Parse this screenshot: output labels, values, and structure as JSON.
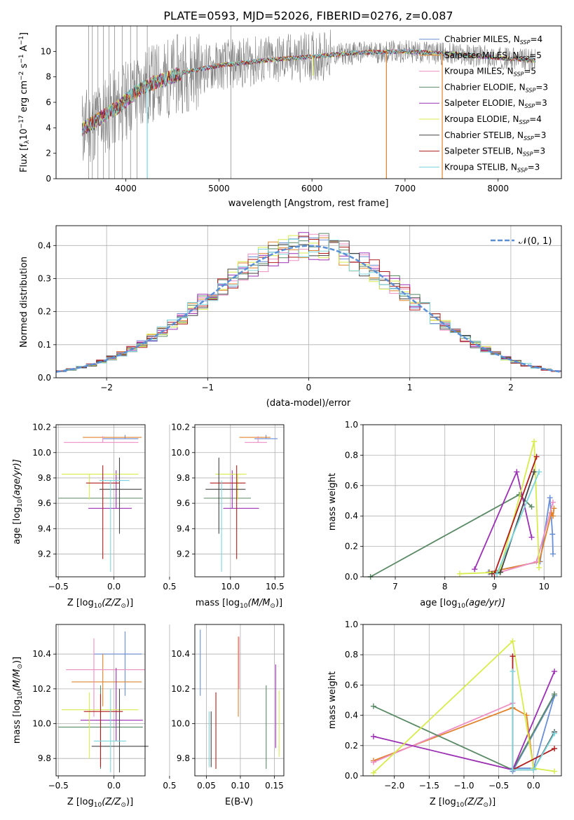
{
  "title": "PLATE=0593, MJD=52026, FIBERID=0276, z=0.087",
  "models": [
    {
      "name": "Chabrier MILES, N",
      "n": "=4",
      "color": "#6a8fd6"
    },
    {
      "name": "Salpeter MILES, N",
      "n": "=5",
      "color": "#e0832c"
    },
    {
      "name": "Kroupa MILES, N",
      "n": "=5",
      "color": "#ee8fc4"
    },
    {
      "name": "Chabrier ELODIE, N",
      "n": "=3",
      "color": "#5b8a66"
    },
    {
      "name": "Salpeter ELODIE, N",
      "n": "=3",
      "color": "#9b30b4"
    },
    {
      "name": "Kroupa ELODIE, N",
      "n": "=4",
      "color": "#d8ec4e"
    },
    {
      "name": "Chabrier STELIB, N",
      "n": "=3",
      "color": "#444444"
    },
    {
      "name": "Salpeter STELIB, N",
      "n": "=3",
      "color": "#b01c1c"
    },
    {
      "name": "Kroupa STELIB, N",
      "n": "=3",
      "color": "#7ad6dc"
    }
  ],
  "legend_sub": "SSP",
  "spectrum_panel": {
    "xlabel": "wavelength [Angstrom, rest frame]",
    "ylabel": "Flux [f",
    "xticks": [
      "4000",
      "5000",
      "6000",
      "7000",
      "8000"
    ],
    "yticks": [
      "0",
      "2",
      "4",
      "6",
      "8",
      "10"
    ],
    "data_color": "#808080"
  },
  "hist_panel": {
    "xlabel": "(data-model)/error",
    "ylabel": "Normed distribution",
    "xticks": [
      "−2",
      "−1",
      "0",
      "1",
      "2"
    ],
    "yticks": [
      "0.0",
      "0.1",
      "0.2",
      "0.3",
      "0.4"
    ],
    "legend": "𝒩(0, 1)",
    "gauss_color": "#5a8fd6"
  },
  "panel_labels": {
    "age": "age  [log",
    "age_close": "(age/yr)]",
    "Z": "Z [log",
    "Z_close": "(Z/Z",
    "mass": "mass [log",
    "mass_close": "(M/M",
    "mass_weight": "mass weight",
    "ebv": "E(B-V)",
    "sun": "⊙",
    "close": ")]",
    "ten": "10"
  },
  "ticks": {
    "age": [
      "9.2",
      "9.4",
      "9.6",
      "9.8",
      "10.0",
      "10.2"
    ],
    "Z_small": [
      "−0.5",
      "0.0",
      "0.5"
    ],
    "mass_x": [
      "10.0",
      "10.5"
    ],
    "mass_y": [
      "9.8",
      "10.0",
      "10.2",
      "10.4"
    ],
    "ebv": [
      "0.05",
      "0.10",
      "0.15"
    ],
    "mw": [
      "0.0",
      "0.2",
      "0.4",
      "0.6",
      "0.8",
      "1.0"
    ],
    "age_x": [
      "7",
      "8",
      "9",
      "10"
    ],
    "Z_x": [
      "−2.0",
      "−1.5",
      "−1.0",
      "−0.5",
      "0.0"
    ]
  },
  "chart_data": [
    {
      "type": "line",
      "title": "PLATE=0593, MJD=52026, FIBERID=0276, z=0.087",
      "xlabel": "wavelength [Angstrom, rest frame]",
      "ylabel": "Flux [f_λ 10^-17 erg cm^-2 s^-1 A^-1]",
      "xlim": [
        3250,
        8680
      ],
      "ylim": [
        0,
        12
      ],
      "continuum": [
        [
          3530,
          3.9
        ],
        [
          3650,
          4.4
        ],
        [
          3800,
          5.1
        ],
        [
          3950,
          5.8
        ],
        [
          4100,
          6.8
        ],
        [
          4300,
          7.5
        ],
        [
          4600,
          8.3
        ],
        [
          5000,
          8.9
        ],
        [
          5500,
          9.3
        ],
        [
          6000,
          9.6
        ],
        [
          6500,
          9.9
        ],
        [
          7000,
          10.0
        ],
        [
          7500,
          9.8
        ],
        [
          8000,
          9.5
        ],
        [
          8400,
          9.3
        ]
      ],
      "model_dips": [
        [
          4230,
          0
        ],
        [
          6010,
          8.1
        ],
        [
          6800,
          0
        ],
        [
          7400,
          0
        ]
      ]
    },
    {
      "type": "bar",
      "title": "",
      "xlabel": "(data-model)/error",
      "ylabel": "Normed distribution",
      "xlim": [
        -2.5,
        2.5
      ],
      "ylim": [
        0,
        0.46
      ],
      "legend": "N(0,1)",
      "bin_width": 0.1
    },
    {
      "type": "scatter",
      "xlabel": "Z [log10(Z/Zsun)]",
      "ylabel": "age [log10(age/yr)]",
      "xlim": [
        -0.52,
        0.28
      ],
      "ylim": [
        9.02,
        10.22
      ],
      "points": [
        {
          "x": 0.1,
          "xerr": [
            0.2,
            0.12
          ],
          "y": 10.11,
          "yerr": [
            0.0,
            0.03
          ]
        },
        {
          "x": -0.1,
          "xerr": [
            0.18,
            0.35
          ],
          "y": 10.12,
          "yerr": [
            0.0,
            0.0
          ]
        },
        {
          "x": -0.1,
          "xerr": [
            0.35,
            0.32
          ],
          "y": 10.08,
          "yerr": [
            0.0,
            0.05
          ]
        },
        {
          "x": -0.12,
          "xerr": [
            0.38,
            0.38
          ],
          "y": 9.64,
          "yerr": [
            0.0,
            0.0
          ]
        },
        {
          "x": 0.02,
          "xerr": [
            0.25,
            0.14
          ],
          "y": 9.56,
          "yerr": [
            0.0,
            0.3
          ]
        },
        {
          "x": -0.22,
          "xerr": [
            0.25,
            0.44
          ],
          "y": 9.83,
          "yerr": [
            0.2,
            0.0
          ]
        },
        {
          "x": 0.05,
          "xerr": [
            0.18,
            0.2
          ],
          "y": 9.71,
          "yerr": [
            0.35,
            0.25
          ]
        },
        {
          "x": -0.1,
          "xerr": [
            0.15,
            0.15
          ],
          "y": 9.76,
          "yerr": [
            0.6,
            0.14
          ]
        },
        {
          "x": -0.03,
          "xerr": [
            0.1,
            0.17
          ],
          "y": 9.78,
          "yerr": [
            0.72,
            0.0
          ]
        }
      ]
    },
    {
      "type": "scatter",
      "xlabel": "mass [log10(M/Msun)]",
      "ylabel": "",
      "xlim": [
        9.6,
        10.6
      ],
      "ylim": [
        9.02,
        10.22
      ],
      "points": [
        {
          "x": 10.4,
          "xerr": [
            0.13,
            0.13
          ],
          "y": 10.11,
          "yerr": [
            0.0,
            0.03
          ]
        },
        {
          "x": 10.25,
          "xerr": [
            0.15,
            0.2
          ],
          "y": 10.12,
          "yerr": [
            0.0,
            0.0
          ]
        },
        {
          "x": 10.31,
          "xerr": [
            0.15,
            0.1
          ],
          "y": 10.08,
          "yerr": [
            0.0,
            0.05
          ]
        },
        {
          "x": 9.98,
          "xerr": [
            0.28,
            0.25
          ],
          "y": 9.64,
          "yerr": [
            0.0,
            0.0
          ]
        },
        {
          "x": 10.02,
          "xerr": [
            0.1,
            0.3
          ],
          "y": 9.56,
          "yerr": [
            0.0,
            0.3
          ]
        },
        {
          "x": 10.08,
          "xerr": [
            0.25,
            0.1
          ],
          "y": 9.83,
          "yerr": [
            0.2,
            0.0
          ]
        },
        {
          "x": 9.87,
          "xerr": [
            0.15,
            0.3
          ],
          "y": 9.71,
          "yerr": [
            0.35,
            0.25
          ]
        },
        {
          "x": 10.07,
          "xerr": [
            0.3,
            0.1
          ],
          "y": 9.76,
          "yerr": [
            0.6,
            0.14
          ]
        },
        {
          "x": 9.9,
          "xerr": [
            0.0,
            0.0
          ],
          "y": 9.78,
          "yerr": [
            0.72,
            0.0
          ]
        }
      ]
    },
    {
      "type": "line",
      "xlabel": "age [log10(age/yr)]",
      "ylabel": "mass weight",
      "xlim": [
        6.35,
        10.35
      ],
      "ylim": [
        0,
        1
      ],
      "series": [
        {
          "points": [
            [
              8.88,
              0.03
            ],
            [
              9.92,
              0.1
            ],
            [
              10.12,
              0.52
            ],
            [
              10.17,
              0.28
            ],
            [
              10.18,
              0.15
            ]
          ]
        },
        {
          "points": [
            [
              8.9,
              0.03
            ],
            [
              9.9,
              0.1
            ],
            [
              10.15,
              0.42
            ],
            [
              10.18,
              0.4
            ],
            [
              10.2,
              0.45
            ]
          ]
        },
        {
          "points": [
            [
              9.0,
              0.02
            ],
            [
              9.85,
              0.1
            ],
            [
              10.18,
              0.49
            ]
          ]
        },
        {
          "points": [
            [
              6.5,
              0.0
            ],
            [
              9.5,
              0.54
            ],
            [
              9.75,
              0.46
            ]
          ]
        },
        {
          "points": [
            [
              8.6,
              0.05
            ],
            [
              9.45,
              0.69
            ],
            [
              9.75,
              0.26
            ]
          ]
        },
        {
          "points": [
            [
              8.3,
              0.02
            ],
            [
              9.1,
              0.03
            ],
            [
              9.8,
              0.89
            ],
            [
              9.9,
              0.06
            ]
          ]
        },
        {
          "points": [
            [
              8.95,
              0.02
            ],
            [
              9.12,
              0.03
            ],
            [
              9.8,
              0.69
            ]
          ]
        },
        {
          "points": [
            [
              9.0,
              0.02
            ],
            [
              9.85,
              0.79
            ]
          ]
        },
        {
          "points": [
            [
              9.05,
              0.02
            ],
            [
              9.9,
              0.69
            ]
          ]
        }
      ]
    },
    {
      "type": "scatter",
      "xlabel": "Z [log10(Z/Zsun)]",
      "ylabel": "mass [log10(M/Msun)]",
      "xlim": [
        -0.52,
        0.28
      ],
      "ylim": [
        9.7,
        10.57
      ],
      "points": [
        {
          "x": 0.1,
          "xerr": [
            0.28,
            0.15
          ],
          "y": 10.4,
          "yerr": [
            0.24,
            0.13
          ]
        },
        {
          "x": -0.1,
          "xerr": [
            0.28,
            0.35
          ],
          "y": 10.24,
          "yerr": [
            0.14,
            0.16
          ]
        },
        {
          "x": -0.18,
          "xerr": [
            0.25,
            0.46
          ],
          "y": 10.31,
          "yerr": [
            0.27,
            0.18
          ]
        },
        {
          "x": -0.12,
          "xerr": [
            0.38,
            0.38
          ],
          "y": 9.98,
          "yerr": [
            0.24,
            0.24
          ]
        },
        {
          "x": 0.02,
          "xerr": [
            0.32,
            0.24
          ],
          "y": 10.02,
          "yerr": [
            0.12,
            0.3
          ]
        },
        {
          "x": -0.22,
          "xerr": [
            0.25,
            0.44
          ],
          "y": 10.08,
          "yerr": [
            0.28,
            0.1
          ]
        },
        {
          "x": 0.05,
          "xerr": [
            0.25,
            0.26
          ],
          "y": 9.87,
          "yerr": [
            0.15,
            0.33
          ]
        },
        {
          "x": -0.12,
          "xerr": [
            0.15,
            0.2
          ],
          "y": 10.07,
          "yerr": [
            0.32,
            0.1
          ]
        },
        {
          "x": -0.03,
          "xerr": [
            0.15,
            0.14
          ],
          "y": 9.9,
          "yerr": [
            0.18,
            0.3
          ]
        }
      ]
    },
    {
      "type": "scatter",
      "xlabel": "E(B-V)",
      "ylabel": "",
      "xlim": [
        0.033,
        0.164
      ],
      "ylim": [
        9.7,
        10.57
      ],
      "points": [
        {
          "x": 0.041,
          "y": 10.35,
          "yerr": [
            0.19,
            0.19
          ]
        },
        {
          "x": 0.097,
          "y": 10.27,
          "yerr": [
            0.23,
            0.23
          ]
        },
        {
          "x": 0.098,
          "y": 10.35,
          "yerr": [
            0.15,
            0.15
          ]
        },
        {
          "x": 0.138,
          "y": 9.98,
          "yerr": [
            0.24,
            0.24
          ]
        },
        {
          "x": 0.152,
          "y": 10.1,
          "yerr": [
            0.24,
            0.24
          ]
        },
        {
          "x": 0.157,
          "y": 10.0,
          "yerr": [
            0.19,
            0.19
          ]
        },
        {
          "x": 0.057,
          "y": 9.91,
          "yerr": [
            0.16,
            0.16
          ]
        },
        {
          "x": 0.064,
          "y": 9.96,
          "yerr": [
            0.22,
            0.22
          ]
        },
        {
          "x": 0.054,
          "y": 9.91,
          "yerr": [
            0.16,
            0.16
          ]
        }
      ]
    },
    {
      "type": "line",
      "xlabel": "Z [log10(Z/Zsun)]",
      "ylabel": "mass weight",
      "xlim": [
        -2.45,
        0.4
      ],
      "ylim": [
        0,
        1
      ],
      "series": [
        {
          "points": [
            [
              -0.3,
              0.05
            ],
            [
              0.0,
              0.05
            ],
            [
              0.3,
              0.53
            ],
            [
              -0.3,
              0.03
            ]
          ]
        },
        {
          "points": [
            [
              -2.3,
              0.1
            ],
            [
              -0.3,
              0.45
            ],
            [
              -0.1,
              0.4
            ],
            [
              0.0,
              0.04
            ]
          ]
        },
        {
          "points": [
            [
              -2.3,
              0.09
            ],
            [
              -0.3,
              0.48
            ],
            [
              -0.3,
              0.04
            ]
          ]
        },
        {
          "points": [
            [
              -2.3,
              0.46
            ],
            [
              -0.3,
              0.04
            ],
            [
              0.3,
              0.54
            ]
          ]
        },
        {
          "points": [
            [
              -2.3,
              0.26
            ],
            [
              -0.3,
              0.04
            ],
            [
              0.3,
              0.69
            ]
          ]
        },
        {
          "points": [
            [
              -2.3,
              0.02
            ],
            [
              -0.3,
              0.89
            ],
            [
              0.0,
              0.05
            ],
            [
              0.3,
              0.03
            ]
          ]
        },
        {
          "points": [
            [
              -0.3,
              0.04
            ],
            [
              0.0,
              0.04
            ],
            [
              0.3,
              0.29
            ]
          ]
        },
        {
          "points": [
            [
              -0.3,
              0.79
            ],
            [
              -0.3,
              0.04
            ],
            [
              0.3,
              0.18
            ]
          ]
        },
        {
          "points": [
            [
              -0.3,
              0.69
            ],
            [
              -0.3,
              0.04
            ],
            [
              0.0,
              0.04
            ],
            [
              0.3,
              0.28
            ]
          ]
        }
      ]
    }
  ]
}
